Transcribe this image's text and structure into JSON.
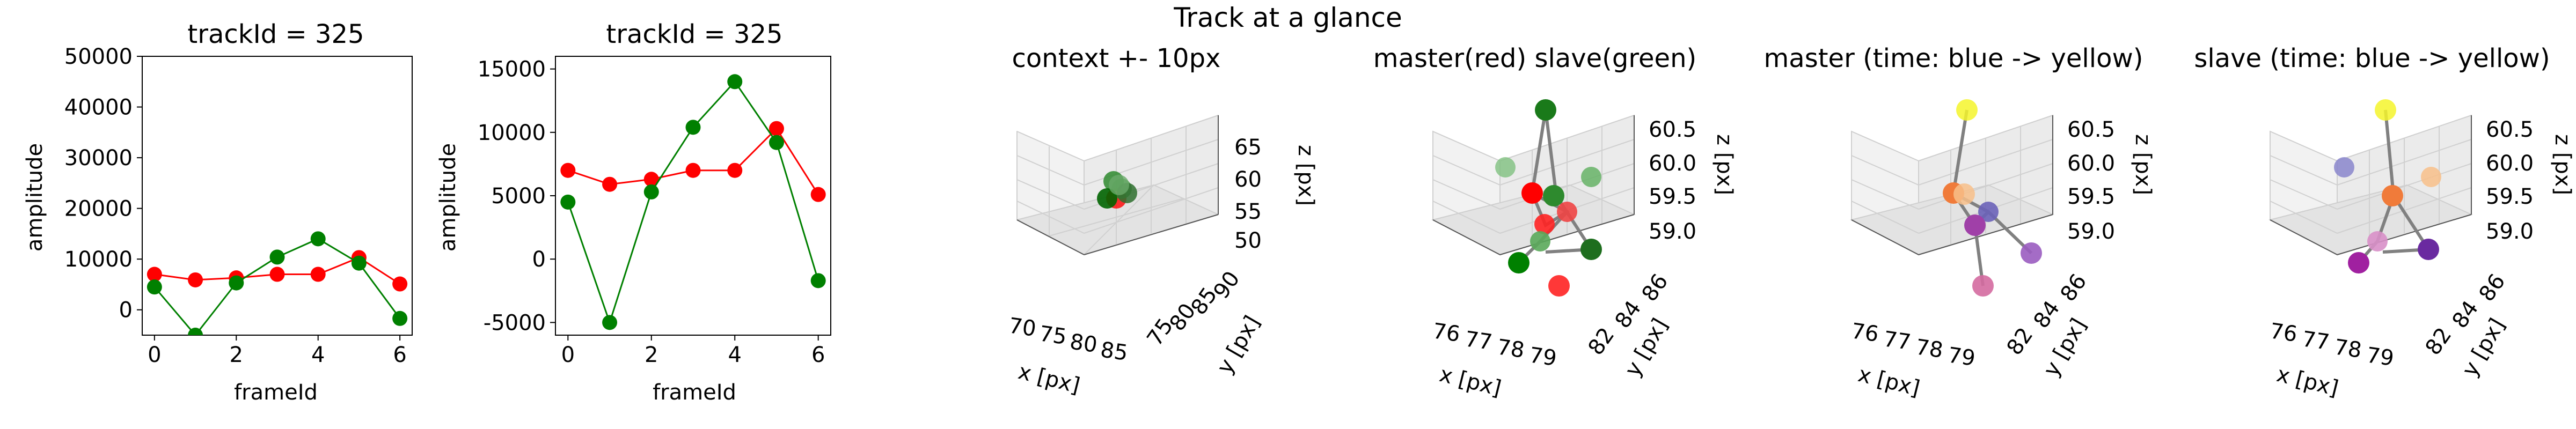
{
  "suptitle": "Track at a glance",
  "chart_data": [
    {
      "type": "line",
      "title": "trackId = 325",
      "xlabel": "frameId",
      "ylabel": "amplitude",
      "xlim": [
        -0.3,
        6.3
      ],
      "ylim": [
        -5000,
        50000
      ],
      "xticks": [
        0,
        2,
        4,
        6
      ],
      "yticks": [
        0,
        10000,
        20000,
        30000,
        40000,
        50000
      ],
      "x": [
        0,
        1,
        2,
        3,
        4,
        5,
        6
      ],
      "series": [
        {
          "color": "#ff0000",
          "values": [
            7000,
            5900,
            6300,
            7000,
            7000,
            10300,
            5100
          ]
        },
        {
          "color": "#008000",
          "values": [
            4500,
            -5000,
            5300,
            10400,
            14000,
            9200,
            -1700
          ]
        }
      ]
    },
    {
      "type": "line",
      "title": "trackId = 325",
      "xlabel": "frameId",
      "ylabel": "amplitude",
      "xlim": [
        -0.3,
        6.3
      ],
      "ylim": [
        -6000,
        16000
      ],
      "xticks": [
        0,
        2,
        4,
        6
      ],
      "yticks": [
        -5000,
        0,
        5000,
        10000,
        15000
      ],
      "x": [
        0,
        1,
        2,
        3,
        4,
        5,
        6
      ],
      "series": [
        {
          "color": "#ff0000",
          "values": [
            7000,
            5900,
            6300,
            7000,
            7000,
            10300,
            5100
          ]
        },
        {
          "color": "#008000",
          "values": [
            4500,
            -5000,
            5300,
            10400,
            14000,
            9200,
            -1700
          ]
        }
      ]
    },
    {
      "type": "scatter",
      "title": "context +- 10px",
      "xlabel": "x [px]",
      "ylabel": "y [px]",
      "zlabel": "z [px]",
      "xticks": [
        "70",
        "75",
        "80",
        "85"
      ],
      "yticks": [
        "75",
        "80",
        "85",
        "90"
      ],
      "zticks": [
        "50",
        "55",
        "60",
        "65"
      ]
    },
    {
      "type": "scatter",
      "title": "master(red) slave(green)",
      "xlabel": "x [px]",
      "ylabel": "y [px]",
      "zlabel": "z [px]",
      "xticks": [
        "76",
        "77",
        "78",
        "79"
      ],
      "yticks": [
        "82",
        "84",
        "86"
      ],
      "zticks": [
        "59.0",
        "59.5",
        "60.0",
        "60.5"
      ]
    },
    {
      "type": "scatter",
      "title": "master (time: blue -> yellow)",
      "xlabel": "x [px]",
      "ylabel": "y [px]",
      "zlabel": "z [px]",
      "xticks": [
        "76",
        "77",
        "78",
        "79"
      ],
      "yticks": [
        "82",
        "84",
        "86"
      ],
      "zticks": [
        "59.0",
        "59.5",
        "60.0",
        "60.5"
      ]
    },
    {
      "type": "scatter",
      "title": "slave (time: blue -> yellow)",
      "xlabel": "x [px]",
      "ylabel": "y [px]",
      "zlabel": "z [px]",
      "xticks": [
        "76",
        "77",
        "78",
        "79"
      ],
      "yticks": [
        "82",
        "84",
        "86"
      ],
      "zticks": [
        "59.0",
        "59.5",
        "60.0",
        "60.5"
      ]
    }
  ]
}
